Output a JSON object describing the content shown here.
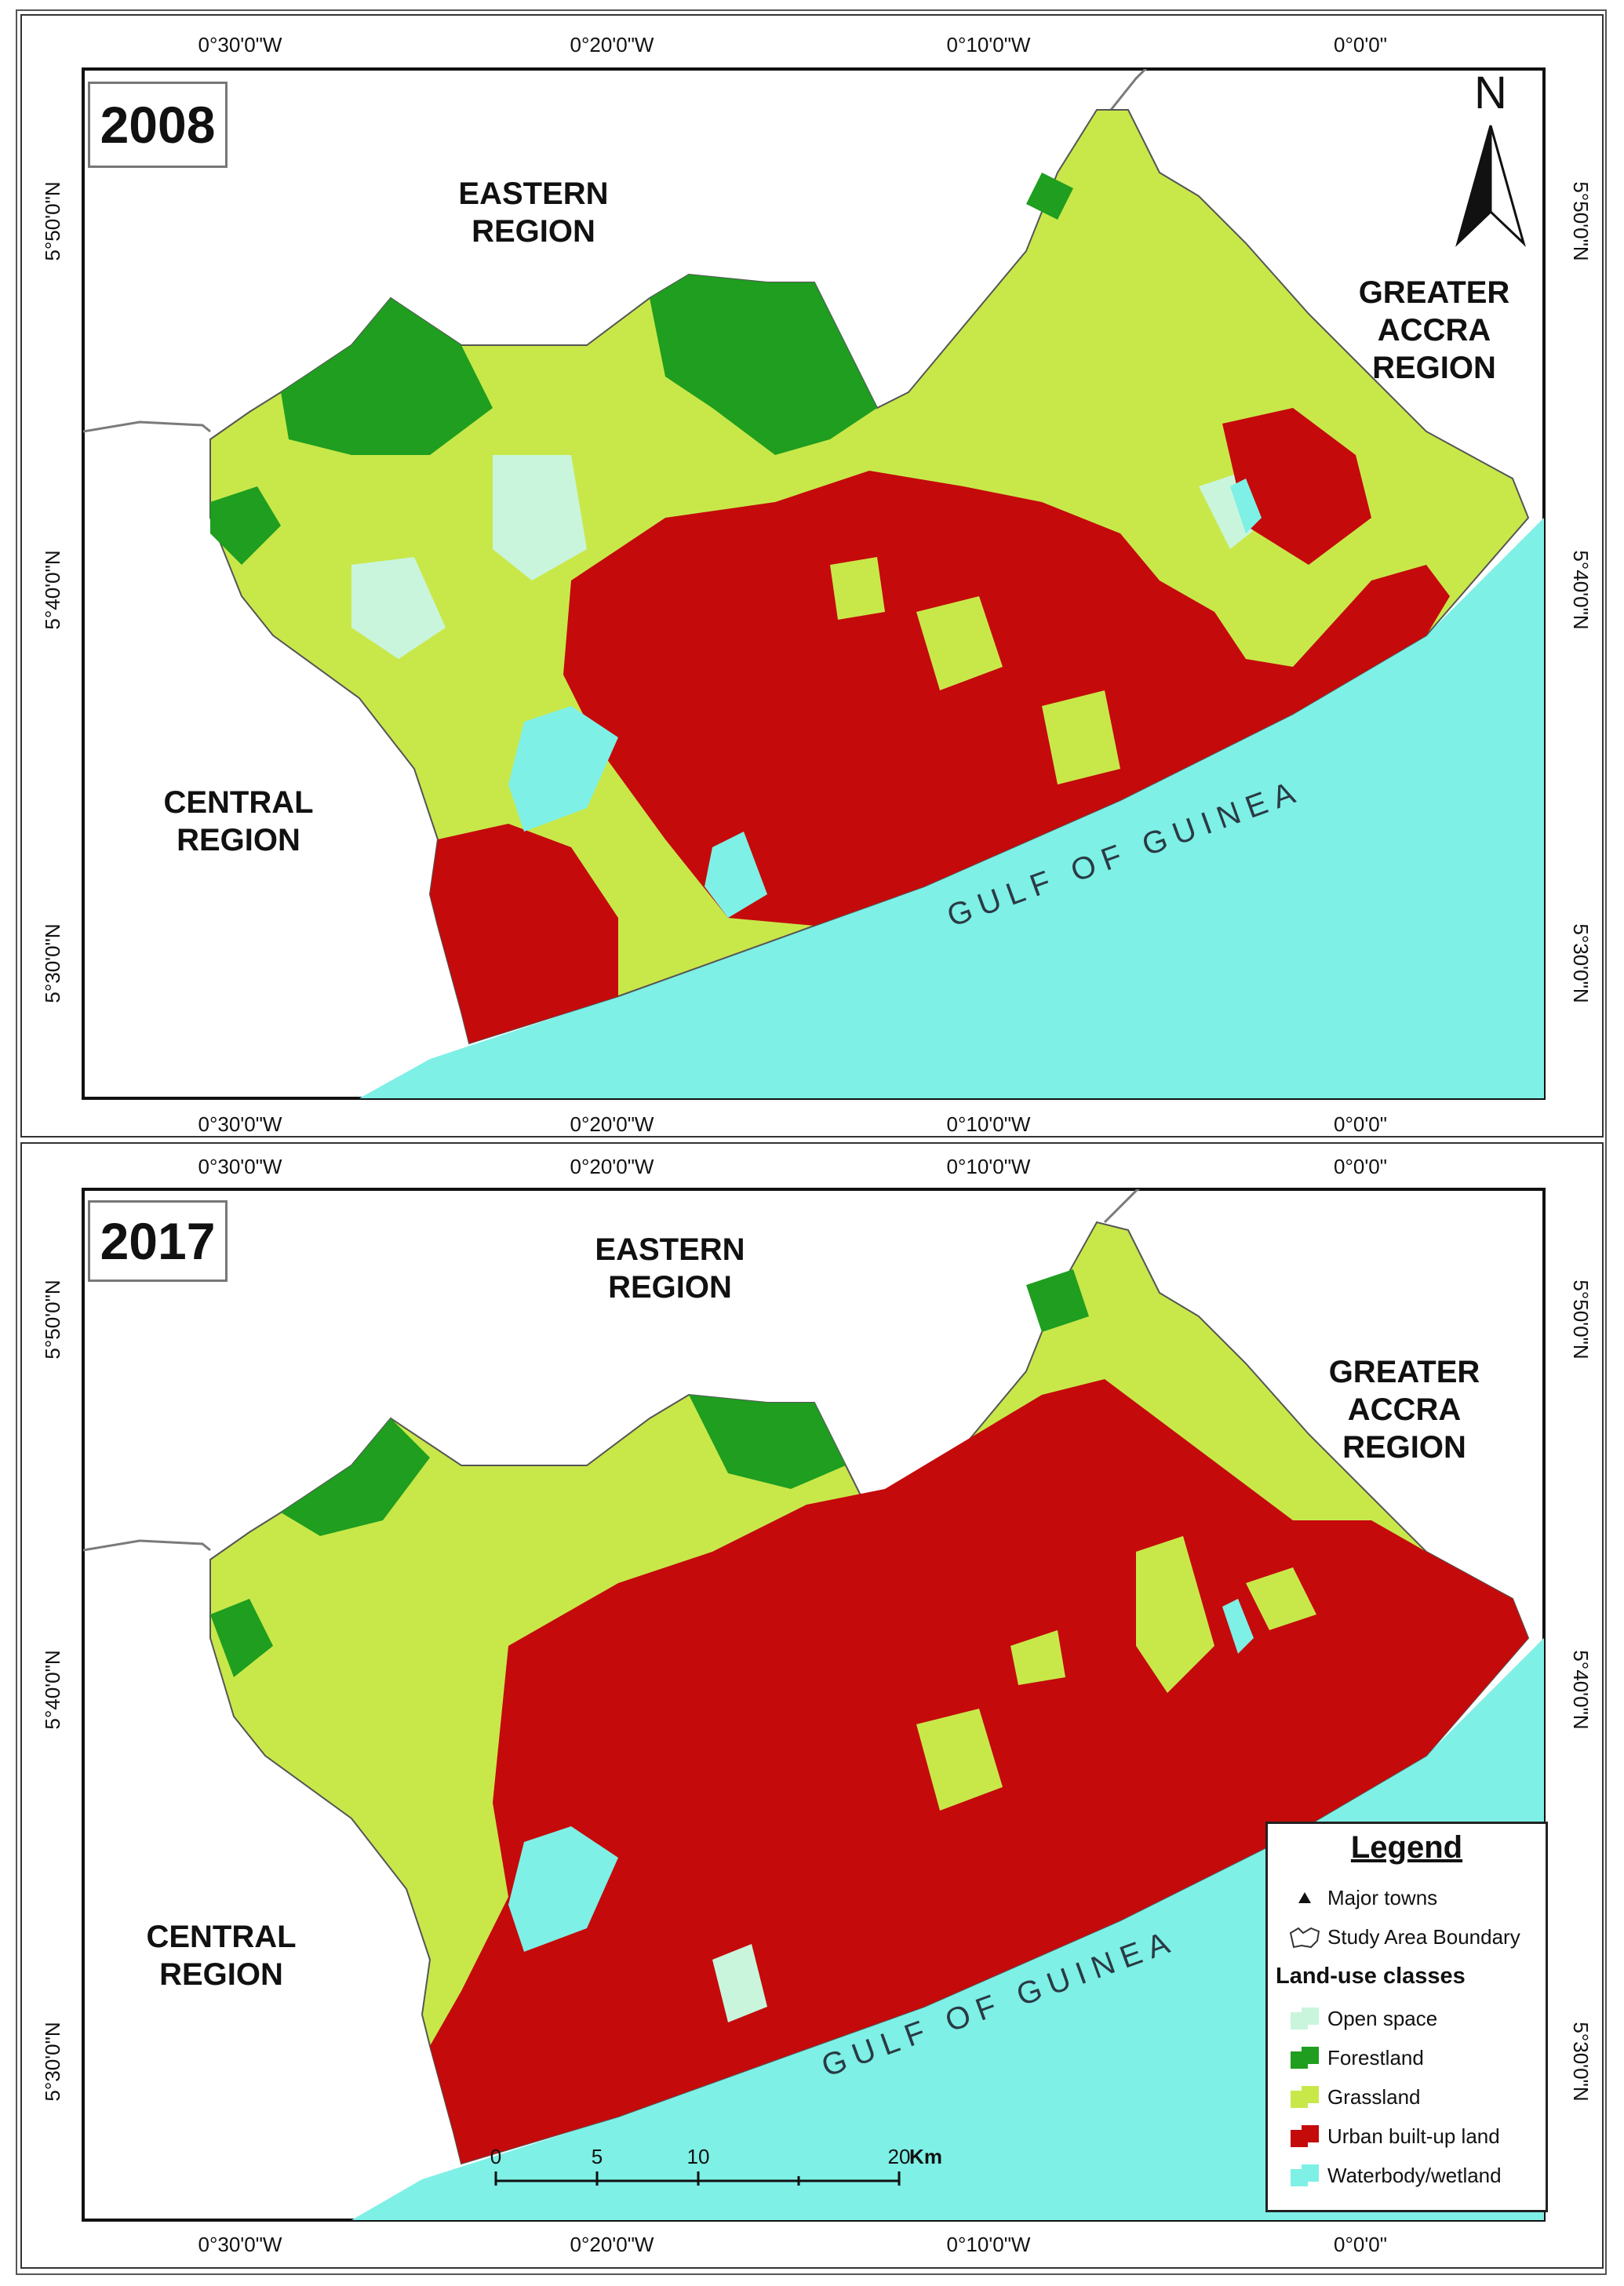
{
  "maps": [
    {
      "year": "2008",
      "regions": {
        "eastern": [
          "EASTERN",
          "REGION"
        ],
        "greater_accra": [
          "GREATER",
          "ACCRA",
          "REGION"
        ],
        "central": [
          "CENTRAL",
          "REGION"
        ]
      },
      "water_body": "GULF OF GUINEA"
    },
    {
      "year": "2017",
      "regions": {
        "eastern": [
          "EASTERN",
          "REGION"
        ],
        "greater_accra": [
          "GREATER",
          "ACCRA",
          "REGION"
        ],
        "central": [
          "CENTRAL",
          "REGION"
        ]
      },
      "water_body": "GULF OF GUINEA"
    }
  ],
  "graticule": {
    "longitudes": [
      "0°30'0\"W",
      "0°20'0\"W",
      "0°10'0\"W",
      "0°0'0\""
    ],
    "latitudes": [
      "5°50'0\"N",
      "5°40'0\"N",
      "5°30'0\"N"
    ]
  },
  "north_arrow": {
    "label": "N"
  },
  "scale_bar": {
    "ticks": [
      "0",
      "5",
      "10",
      "20"
    ],
    "unit": "Km"
  },
  "legend": {
    "title": "Legend",
    "symbols": [
      {
        "label": "Major towns",
        "icon": "triangle-marker"
      },
      {
        "label": "Study Area Boundary",
        "icon": "boundary-outline"
      }
    ],
    "classes_title": "Land-use classes",
    "classes": [
      {
        "label": "Open space",
        "color": "#c9f5dc"
      },
      {
        "label": "Forestland",
        "color": "#1f9e1f"
      },
      {
        "label": "Grassland",
        "color": "#c8e84a"
      },
      {
        "label": "Urban built-up land",
        "color": "#c40a0a"
      },
      {
        "label": "Waterbody/wetland",
        "color": "#7ef0e6"
      }
    ]
  },
  "colors": {
    "sea": "#7ef0e6",
    "frame": "#333333",
    "admin_border": "#7a7a7a"
  }
}
